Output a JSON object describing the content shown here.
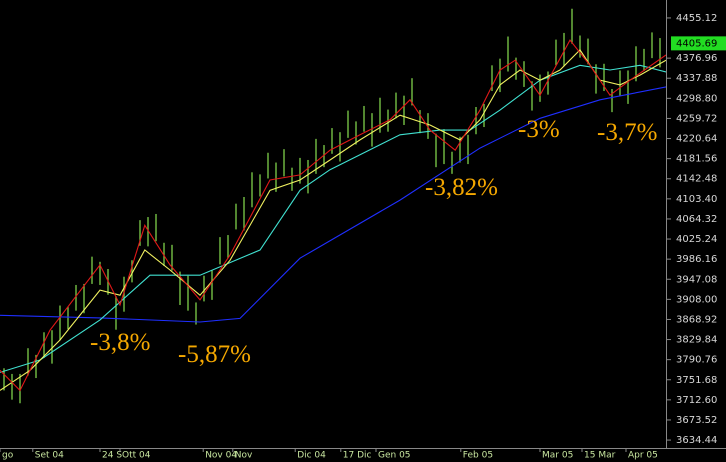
{
  "chart_data": {
    "type": "price-bars",
    "xlim": [
      -0.5,
      82.75
    ],
    "ylim": [
      3619,
      4490
    ],
    "yticks": [
      4455.12,
      4376.96,
      4337.88,
      {
        "value": 4298.8,
        "label": "4298.80"
      },
      4259.72,
      4220.64,
      4181.56,
      4142.48,
      {
        "value": 4103.4,
        "label": "4103.40"
      },
      4064.32,
      4025.24,
      3986.16,
      3947.08,
      {
        "value": 3908.0,
        "label": "3908.00"
      },
      3868.92,
      3829.84,
      3790.76,
      3751.68,
      {
        "value": 3712.6,
        "label": "3712.60"
      },
      3673.52,
      3634.44
    ],
    "xticks": [
      {
        "value": -0.5,
        "label": "go"
      },
      {
        "value": 3.6,
        "label": "Set 04"
      },
      {
        "value": 12,
        "label": "24 S"
      },
      {
        "value": 14.5,
        "label": "Ott 04"
      },
      {
        "value": 24.9,
        "label": "Nov 04"
      },
      {
        "value": 28.6,
        "label": "Nov"
      },
      {
        "value": 36.4,
        "label": "Dic 04"
      },
      {
        "value": 42.1,
        "label": "17 Dic"
      },
      {
        "value": 46.5,
        "label": "Gen 05"
      },
      {
        "value": 57.1,
        "label": "Feb 05"
      },
      {
        "value": 67,
        "label": "Mar 05"
      },
      {
        "value": 72.25,
        "label": "15 Mar"
      },
      {
        "value": 77.75,
        "label": "Apr 05"
      }
    ],
    "last_price": 4405.69,
    "bars": {
      "color": "#7fd04b",
      "x": [
        0,
        1,
        2,
        3,
        4,
        5,
        6,
        7,
        8,
        9,
        10,
        11,
        12,
        13,
        14,
        15,
        16,
        17,
        18,
        19,
        20,
        21,
        22,
        23,
        24,
        25,
        26,
        27,
        28,
        29,
        30,
        31,
        32,
        33,
        34,
        35,
        36,
        37,
        38,
        39,
        40,
        41,
        42,
        43,
        44,
        45,
        46,
        47,
        48,
        49,
        50,
        51,
        52,
        53,
        54,
        55,
        56,
        57,
        58,
        59,
        60,
        61,
        62,
        63,
        64,
        65,
        66,
        67,
        68,
        69,
        70,
        71,
        72,
        73,
        74,
        75,
        76,
        77,
        78,
        79,
        80,
        81,
        82
      ],
      "high": [
        3774,
        3763,
        3763,
        3813,
        3800,
        3844,
        3848,
        3896,
        3893,
        3936,
        3938,
        3991,
        3981,
        3967,
        3914,
        3952,
        3984,
        4062,
        4068,
        4074,
        4018,
        4014,
        3962,
        3954,
        3902,
        3954,
        3964,
        4029,
        4033,
        4094,
        4107,
        4155,
        4151,
        4193,
        4174,
        4200,
        4164,
        4183,
        4179,
        4220,
        4208,
        4241,
        4233,
        4275,
        4254,
        4284,
        4270,
        4300,
        4277,
        4310,
        4304,
        4338,
        4276,
        4270,
        4230,
        4239,
        4195,
        4224,
        4228,
        4282,
        4288,
        4363,
        4376,
        4419,
        4378,
        4371,
        4332,
        4345,
        4351,
        4413,
        4426,
        4473,
        4421,
        4415,
        4365,
        4366,
        4317,
        4353,
        4353,
        4400,
        4395,
        4427,
        4416
      ],
      "low": [
        3731,
        3713,
        3706,
        3760,
        3755,
        3794,
        3783,
        3828,
        3850,
        3886,
        3881,
        3938,
        3936,
        3917,
        3849,
        3884,
        3941,
        4012,
        4011,
        4021,
        3973,
        3964,
        3897,
        3886,
        3859,
        3904,
        3907,
        3976,
        3988,
        4044,
        4042,
        4087,
        4108,
        4143,
        4117,
        4147,
        4119,
        4133,
        4114,
        4152,
        4165,
        4191,
        4176,
        4222,
        4209,
        4234,
        4205,
        4232,
        4234,
        4260,
        4247,
        4285,
        4231,
        4220,
        4165,
        4171,
        4152,
        4174,
        4171,
        4229,
        4243,
        4313,
        4311,
        4351,
        4335,
        4321,
        4275,
        4292,
        4306,
        4363,
        4361,
        4405,
        4378,
        4365,
        4308,
        4313,
        4272,
        4303,
        4288,
        4332,
        4352,
        4377,
        4359
      ]
    },
    "lines": [
      {
        "color": "#1f2fff",
        "x": [
          -0.5,
          12,
          24.5,
          29.5,
          37,
          49.5,
          59.5,
          67,
          74.5,
          82.75
        ],
        "values": [
          3877,
          3872,
          3864,
          3871,
          3988,
          4101,
          4202,
          4260,
          4296,
          4321
        ]
      },
      {
        "color": "#40e0d0",
        "x": [
          -0.5,
          4.5,
          12,
          18.25,
          24.5,
          32,
          37,
          40.75,
          49.5,
          54.5,
          58.25,
          62,
          67,
          72,
          75.75,
          79.5,
          82.75
        ],
        "values": [
          3766,
          3790,
          3868,
          3955,
          3955,
          4004,
          4120,
          4160,
          4228,
          4237,
          4237,
          4276,
          4334,
          4363,
          4354,
          4363,
          4350
        ]
      },
      {
        "color": "#f0f060",
        "x": [
          -0.5,
          3.25,
          7,
          12,
          14.5,
          17.6,
          20.75,
          24.5,
          28.25,
          33.25,
          37,
          40.75,
          44.5,
          49.5,
          53.25,
          57,
          59.5,
          62,
          64.5,
          67,
          69.5,
          72,
          74.5,
          77,
          79.5,
          82.75
        ],
        "values": [
          3731,
          3770,
          3829,
          3926,
          3916,
          4004,
          3965,
          3916,
          3984,
          4120,
          4140,
          4179,
          4218,
          4266,
          4247,
          4218,
          4257,
          4325,
          4354,
          4334,
          4354,
          4393,
          4334,
          4325,
          4344,
          4373
        ]
      },
      {
        "color": "#e01818",
        "x": [
          -0.5,
          2,
          5.75,
          12,
          14.5,
          17.6,
          20.75,
          24.5,
          28.25,
          33.25,
          37,
          40.75,
          44.5,
          48.25,
          50.75,
          53.25,
          56.4,
          59.5,
          62,
          63.9,
          67,
          70.75,
          73.25,
          75.75,
          78.25,
          82.75
        ],
        "values": [
          3770,
          3731,
          3848,
          3975,
          3897,
          4052,
          3975,
          3907,
          3994,
          4140,
          4150,
          4198,
          4228,
          4257,
          4296,
          4237,
          4198,
          4276,
          4354,
          4373,
          4305,
          4412,
          4363,
          4305,
          4334,
          4383
        ]
      }
    ],
    "annotations": [
      "-3,8%",
      "-5,87%",
      "-3,82%",
      "-3%",
      "-3,7%"
    ]
  }
}
